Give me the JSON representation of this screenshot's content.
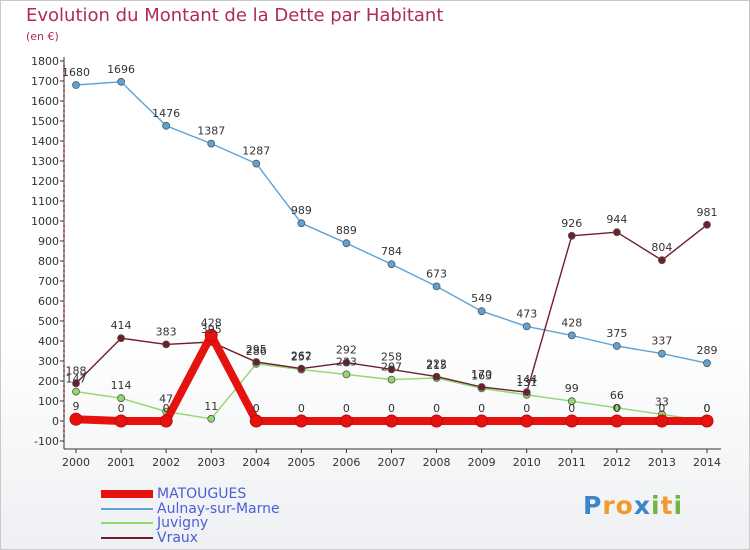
{
  "title": "Evolution du Montant de la Dette par Habitant",
  "subtitle": "(en €)",
  "logo": {
    "letters": [
      {
        "ch": "P",
        "color": "#3a86c8"
      },
      {
        "ch": "r",
        "color": "#f29a2e"
      },
      {
        "ch": "o",
        "color": "#f29a2e"
      },
      {
        "ch": "x",
        "color": "#3a86c8"
      },
      {
        "ch": "i",
        "color": "#6fb83f"
      },
      {
        "ch": "t",
        "color": "#f29a2e"
      },
      {
        "ch": "i",
        "color": "#6fb83f"
      }
    ]
  },
  "chart_data": {
    "type": "line",
    "title": "Evolution du Montant de la Dette par Habitant",
    "subtitle": "(en €)",
    "xlabel": "",
    "ylabel": "",
    "x": [
      "2000",
      "2001",
      "2002",
      "2003",
      "2004",
      "2005",
      "2006",
      "2007",
      "2008",
      "2009",
      "2010",
      "2011",
      "2012",
      "2013",
      "2014"
    ],
    "ylim": [
      -100,
      1800
    ],
    "yticks": [
      "-100",
      "0",
      "100",
      "200",
      "300",
      "400",
      "500",
      "600",
      "700",
      "800",
      "900",
      "1000",
      "1100",
      "1200",
      "1300",
      "1400",
      "1500",
      "1600",
      "1700",
      "1800"
    ],
    "grid": false,
    "legend_position": "bottom-left",
    "series": [
      {
        "name": "MATOUGUES",
        "color": "#e5120e",
        "thick": true,
        "values": [
          9,
          0,
          0,
          428,
          0,
          0,
          0,
          0,
          0,
          0,
          0,
          0,
          0,
          0,
          0
        ],
        "labels": [
          "9",
          "0",
          "0",
          "428",
          "0",
          "0",
          "0",
          "0",
          "0",
          "0",
          "0",
          "0",
          "0",
          "0",
          "0"
        ]
      },
      {
        "name": "Aulnay-sur-Marne",
        "color": "#5fa3d6",
        "values": [
          1680,
          1696,
          1476,
          1387,
          1287,
          989,
          889,
          784,
          673,
          549,
          473,
          428,
          375,
          337,
          289
        ],
        "labels": [
          "1680",
          "1696",
          "1476",
          "1387",
          "1287",
          "989",
          "889",
          "784",
          "673",
          "549",
          "473",
          "428",
          "375",
          "337",
          "289"
        ]
      },
      {
        "name": "Juvigny",
        "color": "#8fd86b",
        "values": [
          147,
          114,
          47,
          11,
          286,
          257,
          233,
          207,
          215,
          163,
          131,
          99,
          66,
          33,
          0
        ],
        "labels": [
          "147",
          "114",
          "47",
          "11",
          "286",
          "257",
          "233",
          "207",
          "215",
          "163",
          "131",
          "99",
          "66",
          "33",
          "0"
        ]
      },
      {
        "name": "Vraux",
        "color": "#6e1f2a",
        "values": [
          188,
          414,
          383,
          395,
          295,
          262,
          292,
          258,
          222,
          170,
          144,
          926,
          944,
          804,
          981
        ],
        "labels": [
          "188",
          "414",
          "383",
          "395",
          "295",
          "262",
          "292",
          "258",
          "222",
          "170",
          "144",
          "926",
          "944",
          "804",
          "981"
        ]
      }
    ]
  }
}
